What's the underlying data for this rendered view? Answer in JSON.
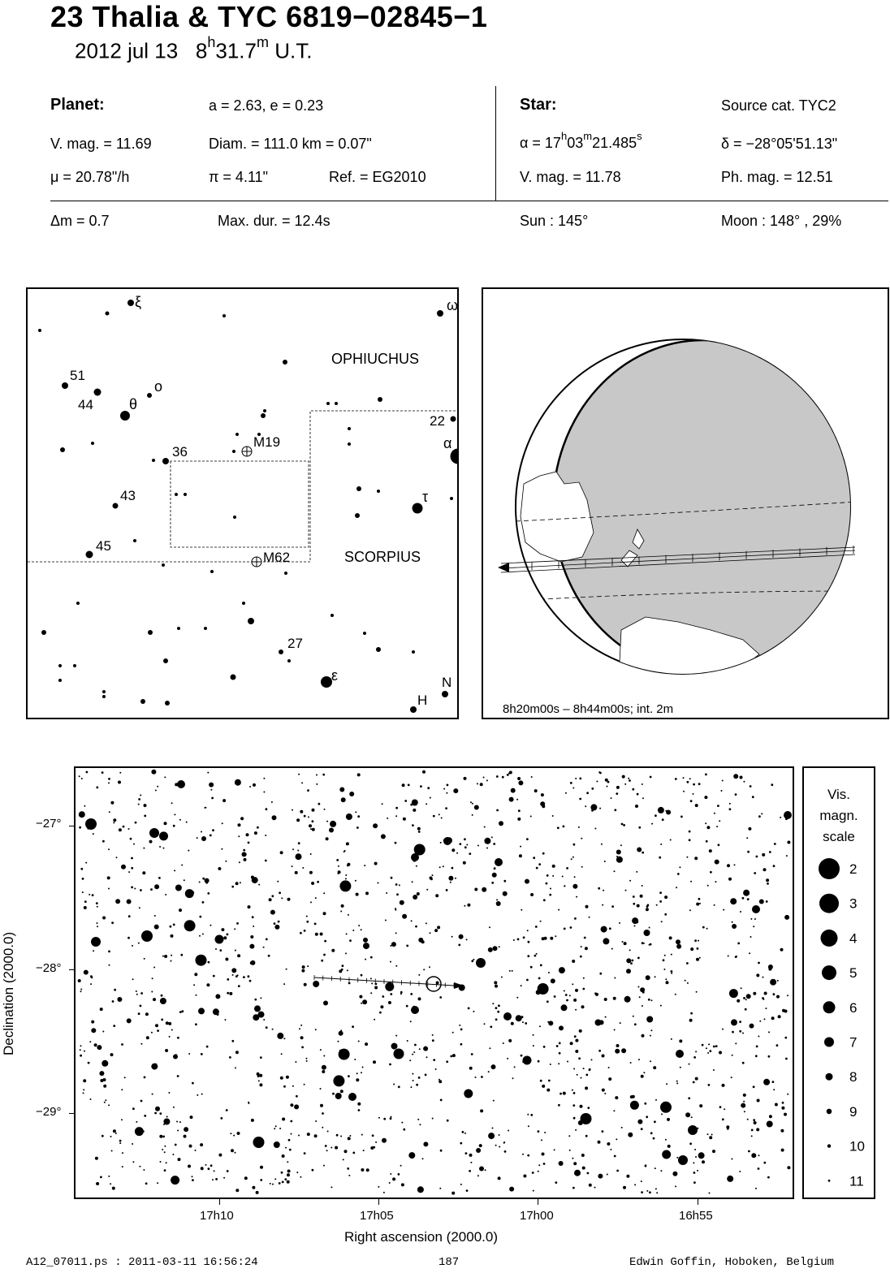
{
  "header": {
    "title": "23 Thalia  &  TYC 6819−02845−1",
    "date_prefix": "2012 jul 13",
    "time_h": "8",
    "time_h_sup": "h",
    "time_m": "31.7",
    "time_m_sup": "m",
    "time_suffix": "U.T."
  },
  "planet": {
    "heading": "Planet:",
    "orbit": "a = 2.63, e = 0.23",
    "vmag": "V. mag. = 11.69",
    "diam": "Diam. = 111.0 km = 0.07\"",
    "mu": "μ =  20.78\"/h",
    "pi": "π =  4.11\"",
    "ref": "Ref. = EG2010"
  },
  "star": {
    "heading": "Star:",
    "source": "Source cat.  TYC2",
    "alpha_prefix": "α = 17",
    "alpha_h": "h",
    "alpha_mid": "03",
    "alpha_m": "m",
    "alpha_val": "21.485",
    "alpha_s": "s",
    "delta": "δ = −28°05'51.13\"",
    "vmag": "V. mag. = 11.78",
    "phmag": "Ph. mag. = 12.51"
  },
  "event": {
    "dm": "Δm = 0.7",
    "maxdur": "Max. dur. = 12.4s",
    "sun": "Sun : 145°",
    "moon": "Moon : 148° , 29%"
  },
  "finder": {
    "constellation_top": "OPHIUCHUS",
    "constellation_bottom": "SCORPIUS",
    "labels": [
      "ξ",
      "ω",
      "51",
      "44",
      "ο",
      "θ",
      "22",
      "α",
      "36",
      "M19",
      "43",
      "τ",
      "45",
      "M62",
      "27",
      "ε",
      "N",
      "H"
    ]
  },
  "earth_map": {
    "caption": "8h20m00s –  8h44m00s; int.  2m"
  },
  "star_chart": {
    "ylabel": "Declination (2000.0)",
    "xlabel": "Right ascension (2000.0)",
    "x_ticks": [
      "17h10",
      "17h05",
      "17h00",
      "16h55"
    ],
    "y_ticks": [
      "−27°",
      "−28°",
      "−29°"
    ]
  },
  "mag_scale": {
    "title_lines": [
      "Vis.",
      "magn.",
      "scale"
    ],
    "entries": [
      {
        "mag": "2",
        "r": 13
      },
      {
        "mag": "3",
        "r": 12
      },
      {
        "mag": "4",
        "r": 10.5
      },
      {
        "mag": "5",
        "r": 9
      },
      {
        "mag": "6",
        "r": 7.5
      },
      {
        "mag": "7",
        "r": 6
      },
      {
        "mag": "8",
        "r": 4.5
      },
      {
        "mag": "9",
        "r": 3.3
      },
      {
        "mag": "10",
        "r": 2.2
      },
      {
        "mag": "11",
        "r": 1.4
      }
    ]
  },
  "footer": {
    "file": "A12_07011.ps : 2011-03-11 16:56:24",
    "page": "187",
    "author": "Edwin Goffin, Hoboken, Belgium"
  }
}
